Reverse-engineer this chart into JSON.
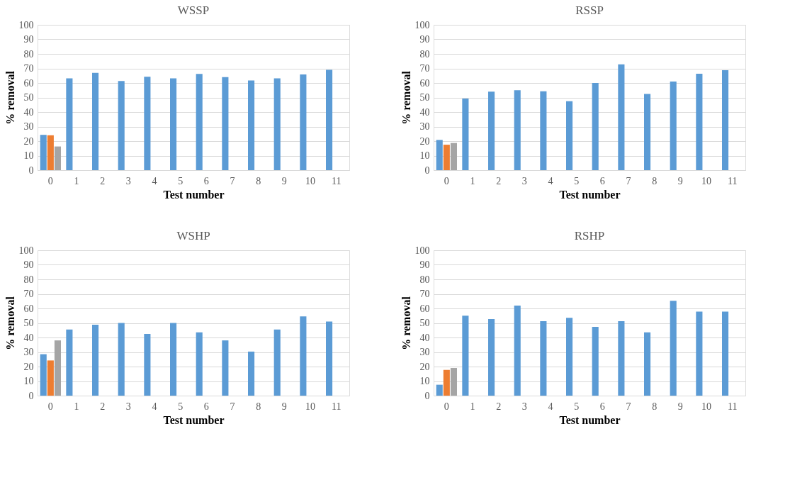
{
  "chart_data": [
    {
      "type": "bar",
      "title": "WSSP",
      "xlabel": "Test number",
      "ylabel": "% removal",
      "categories": [
        "0",
        "1",
        "2",
        "3",
        "4",
        "5",
        "6",
        "7",
        "8",
        "9",
        "10",
        "11"
      ],
      "ylim": [
        0,
        100
      ],
      "yticks": [
        0,
        10,
        20,
        30,
        40,
        50,
        60,
        70,
        80,
        90,
        100
      ],
      "grid": "y",
      "legend": false,
      "series": [
        {
          "color": "#5b9bd5",
          "values": [
            24.3,
            63.2,
            67,
            61.3,
            64.3,
            63.2,
            66.2,
            64,
            61.7,
            63.2,
            65.8,
            69
          ]
        },
        {
          "color": "#ed7d31",
          "values": [
            24,
            null,
            null,
            null,
            null,
            null,
            null,
            null,
            null,
            null,
            null,
            null
          ]
        },
        {
          "color": "#a5a5a5",
          "values": [
            16.3,
            null,
            null,
            null,
            null,
            null,
            null,
            null,
            null,
            null,
            null,
            null
          ]
        }
      ]
    },
    {
      "type": "bar",
      "title": "RSSP",
      "xlabel": "Test number",
      "ylabel": "% removal",
      "categories": [
        "0",
        "1",
        "2",
        "3",
        "4",
        "5",
        "6",
        "7",
        "8",
        "9",
        "10",
        "11"
      ],
      "ylim": [
        0,
        100
      ],
      "yticks": [
        0,
        10,
        20,
        30,
        40,
        50,
        60,
        70,
        80,
        90,
        100
      ],
      "grid": "y",
      "legend": false,
      "series": [
        {
          "color": "#5b9bd5",
          "values": [
            20.8,
            49.3,
            54,
            55,
            54.3,
            47.5,
            60,
            72.8,
            52.5,
            61,
            66.3,
            68.8
          ]
        },
        {
          "color": "#ed7d31",
          "values": [
            17.5,
            null,
            null,
            null,
            null,
            null,
            null,
            null,
            null,
            null,
            null,
            null
          ]
        },
        {
          "color": "#a5a5a5",
          "values": [
            18.7,
            null,
            null,
            null,
            null,
            null,
            null,
            null,
            null,
            null,
            null,
            null
          ]
        }
      ]
    },
    {
      "type": "bar",
      "title": "WSHP",
      "xlabel": "Test number",
      "ylabel": "% removal",
      "categories": [
        "0",
        "1",
        "2",
        "3",
        "4",
        "5",
        "6",
        "7",
        "8",
        "9",
        "10",
        "11"
      ],
      "ylim": [
        0,
        100
      ],
      "yticks": [
        0,
        10,
        20,
        30,
        40,
        50,
        60,
        70,
        80,
        90,
        100
      ],
      "grid": "y",
      "legend": false,
      "series": [
        {
          "color": "#5b9bd5",
          "values": [
            28.5,
            45.5,
            48.8,
            50,
            42.5,
            50,
            43.5,
            38,
            30.3,
            45.5,
            54.5,
            51
          ]
        },
        {
          "color": "#ed7d31",
          "values": [
            24.2,
            null,
            null,
            null,
            null,
            null,
            null,
            null,
            null,
            null,
            null,
            null
          ]
        },
        {
          "color": "#a5a5a5",
          "values": [
            38,
            null,
            null,
            null,
            null,
            null,
            null,
            null,
            null,
            null,
            null,
            null
          ]
        }
      ]
    },
    {
      "type": "bar",
      "title": "RSHP",
      "xlabel": "Test number",
      "ylabel": "% removal",
      "categories": [
        "0",
        "1",
        "2",
        "3",
        "4",
        "5",
        "6",
        "7",
        "8",
        "9",
        "10",
        "11"
      ],
      "ylim": [
        0,
        100
      ],
      "yticks": [
        0,
        10,
        20,
        30,
        40,
        50,
        60,
        70,
        80,
        90,
        100
      ],
      "grid": "y",
      "legend": false,
      "series": [
        {
          "color": "#5b9bd5",
          "values": [
            7.5,
            55,
            52.7,
            62,
            51.2,
            53.5,
            47.3,
            51.2,
            43.5,
            65.3,
            57.8,
            57.8
          ]
        },
        {
          "color": "#ed7d31",
          "values": [
            17.7,
            null,
            null,
            null,
            null,
            null,
            null,
            null,
            null,
            null,
            null,
            null
          ]
        },
        {
          "color": "#a5a5a5",
          "values": [
            19,
            null,
            null,
            null,
            null,
            null,
            null,
            null,
            null,
            null,
            null,
            null
          ]
        }
      ]
    }
  ]
}
